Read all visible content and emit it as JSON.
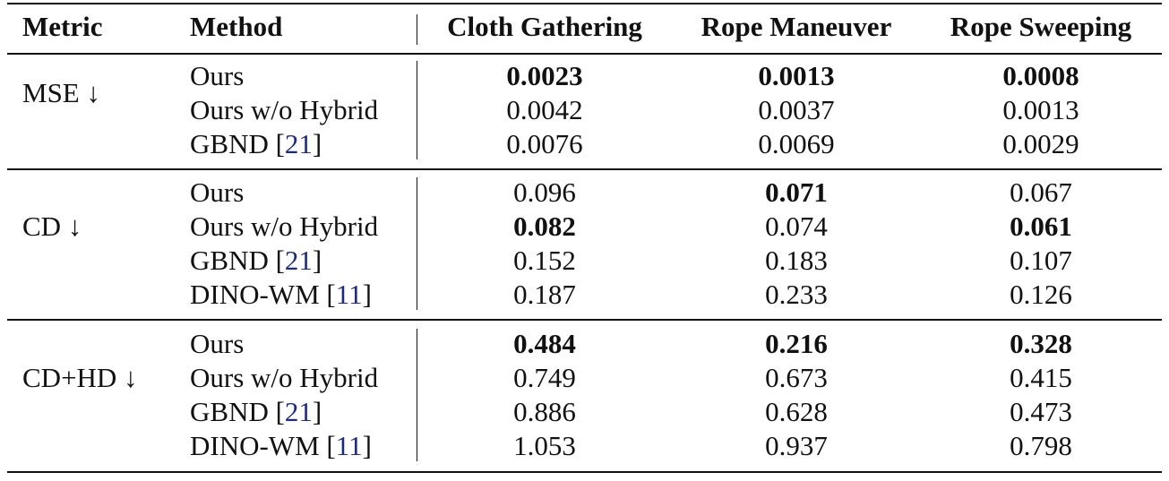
{
  "table": {
    "header": [
      "Metric",
      "Method",
      "Cloth Gathering",
      "Rope Maneuver",
      "Rope Sweeping"
    ],
    "groups": [
      {
        "metric": "MSE ↓",
        "rows": [
          {
            "method": {
              "name": "Ours"
            },
            "values": [
              {
                "text": "0.0023",
                "bold": true
              },
              {
                "text": "0.0013",
                "bold": true
              },
              {
                "text": "0.0008",
                "bold": true
              }
            ]
          },
          {
            "method": {
              "name": "Ours w/o Hybrid"
            },
            "values": [
              {
                "text": "0.0042",
                "bold": false
              },
              {
                "text": "0.0037",
                "bold": false
              },
              {
                "text": "0.0013",
                "bold": false
              }
            ]
          },
          {
            "method": {
              "name": "GBND",
              "ref": {
                "open": "[",
                "number": "21",
                "close": "]"
              }
            },
            "values": [
              {
                "text": "0.0076",
                "bold": false
              },
              {
                "text": "0.0069",
                "bold": false
              },
              {
                "text": "0.0029",
                "bold": false
              }
            ]
          }
        ]
      },
      {
        "metric": "CD ↓",
        "rows": [
          {
            "method": {
              "name": "Ours"
            },
            "values": [
              {
                "text": "0.096",
                "bold": false
              },
              {
                "text": "0.071",
                "bold": true
              },
              {
                "text": "0.067",
                "bold": false
              }
            ]
          },
          {
            "method": {
              "name": "Ours w/o Hybrid"
            },
            "values": [
              {
                "text": "0.082",
                "bold": true
              },
              {
                "text": "0.074",
                "bold": false
              },
              {
                "text": "0.061",
                "bold": true
              }
            ]
          },
          {
            "method": {
              "name": "GBND",
              "ref": {
                "open": "[",
                "number": "21",
                "close": "]"
              }
            },
            "values": [
              {
                "text": "0.152",
                "bold": false
              },
              {
                "text": "0.183",
                "bold": false
              },
              {
                "text": "0.107",
                "bold": false
              }
            ]
          },
          {
            "method": {
              "name": "DINO-WM",
              "ref": {
                "open": "[",
                "number": "11",
                "close": "]"
              }
            },
            "values": [
              {
                "text": "0.187",
                "bold": false
              },
              {
                "text": "0.233",
                "bold": false
              },
              {
                "text": "0.126",
                "bold": false
              }
            ]
          }
        ]
      },
      {
        "metric": "CD+HD ↓",
        "rows": [
          {
            "method": {
              "name": "Ours"
            },
            "values": [
              {
                "text": "0.484",
                "bold": true
              },
              {
                "text": "0.216",
                "bold": true
              },
              {
                "text": "0.328",
                "bold": true
              }
            ]
          },
          {
            "method": {
              "name": "Ours w/o Hybrid"
            },
            "values": [
              {
                "text": "0.749",
                "bold": false
              },
              {
                "text": "0.673",
                "bold": false
              },
              {
                "text": "0.415",
                "bold": false
              }
            ]
          },
          {
            "method": {
              "name": "GBND",
              "ref": {
                "open": "[",
                "number": "21",
                "close": "]"
              }
            },
            "values": [
              {
                "text": "0.886",
                "bold": false
              },
              {
                "text": "0.628",
                "bold": false
              },
              {
                "text": "0.473",
                "bold": false
              }
            ]
          },
          {
            "method": {
              "name": "DINO-WM",
              "ref": {
                "open": "[",
                "number": "11",
                "close": "]"
              }
            },
            "values": [
              {
                "text": "1.053",
                "bold": false
              },
              {
                "text": "0.937",
                "bold": false
              },
              {
                "text": "0.798",
                "bold": false
              }
            ]
          }
        ]
      }
    ]
  }
}
